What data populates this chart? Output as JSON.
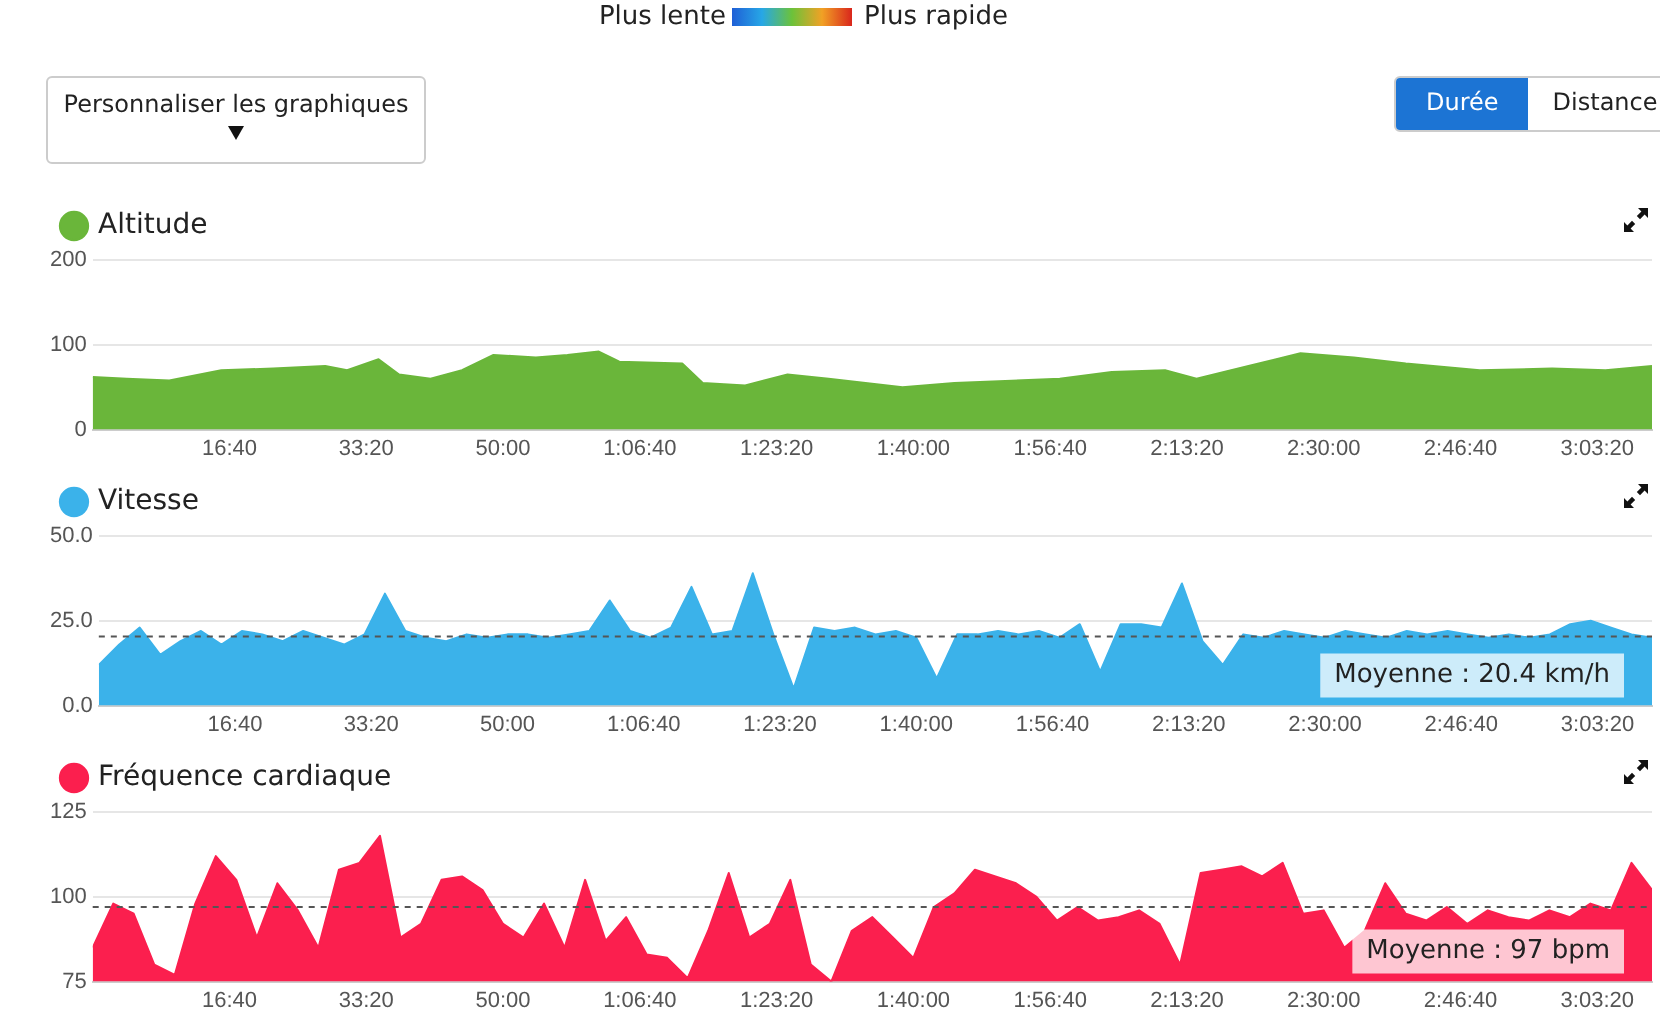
{
  "chart_data": [
    {
      "type": "area",
      "legend": "top left",
      "grid": "y",
      "marker": "none",
      "annotations": [
        "Plus lente",
        "Plus rapide",
        "Personnaliser les graphiques",
        "Durée",
        "Distance"
      ],
      "xlim": [
        0,
        11400
      ],
      "xticks": [
        {
          "value": 1000,
          "label": "16:40"
        },
        {
          "value": 2000,
          "label": "33:20"
        },
        {
          "value": 3000,
          "label": "50:00"
        },
        {
          "value": 4000,
          "label": "1:06:40"
        },
        {
          "value": 5000,
          "label": "1:23:20"
        },
        {
          "value": 6000,
          "label": "1:40:00"
        },
        {
          "value": 7000,
          "label": "1:56:40"
        },
        {
          "value": 8000,
          "label": "2:13:20"
        },
        {
          "value": 9000,
          "label": "2:30:00"
        },
        {
          "value": 10000,
          "label": "2:46:40"
        },
        {
          "value": 11000,
          "label": "3:03:20"
        }
      ],
      "ylim": [
        0,
        200
      ],
      "yticks": [
        0,
        100,
        200
      ],
      "series": [
        {
          "name": "Altitude",
          "color": "#6ab63a",
          "x": [
            0,
            250,
            560,
            940,
            1320,
            1700,
            1860,
            2090,
            2240,
            2470,
            2700,
            2930,
            3240,
            3470,
            3700,
            3850,
            4310,
            4460,
            4770,
            5080,
            5380,
            5920,
            6300,
            7070,
            7450,
            7840,
            8070,
            8450,
            8830,
            9220,
            9600,
            10140,
            10670,
            11060,
            11400
          ],
          "values": [
            62,
            60,
            58,
            70,
            72,
            75,
            70,
            83,
            65,
            60,
            70,
            88,
            85,
            88,
            92,
            80,
            78,
            55,
            52,
            65,
            60,
            50,
            55,
            60,
            68,
            70,
            60,
            75,
            90,
            85,
            78,
            70,
            72,
            70,
            75
          ]
        }
      ]
    },
    {
      "type": "area",
      "legend": "top left",
      "grid": "y",
      "marker": "none",
      "xlim": [
        0,
        11400
      ],
      "xticks": [
        {
          "value": 1000,
          "label": "16:40"
        },
        {
          "value": 2000,
          "label": "33:20"
        },
        {
          "value": 3000,
          "label": "50:00"
        },
        {
          "value": 4000,
          "label": "1:06:40"
        },
        {
          "value": 5000,
          "label": "1:23:20"
        },
        {
          "value": 6000,
          "label": "1:40:00"
        },
        {
          "value": 7000,
          "label": "1:56:40"
        },
        {
          "value": 8000,
          "label": "2:13:20"
        },
        {
          "value": 9000,
          "label": "2:30:00"
        },
        {
          "value": 10000,
          "label": "2:46:40"
        },
        {
          "value": 11000,
          "label": "3:03:20"
        }
      ],
      "ylim": [
        0,
        50
      ],
      "yticks": [
        {
          "value": 0,
          "label": "0.0"
        },
        {
          "value": 25,
          "label": "25.0"
        },
        {
          "value": 50,
          "label": "50.0"
        }
      ],
      "ref_lines": [
        {
          "axis": "y",
          "value": 20.4,
          "label": "Moyenne : 20.4 km/h",
          "line_style": "dashed"
        }
      ],
      "x": [
        0,
        150,
        300,
        450,
        600,
        750,
        900,
        1050,
        1200,
        1350,
        1500,
        1650,
        1800,
        1950,
        2100,
        2250,
        2400,
        2550,
        2700,
        2850,
        3000,
        3150,
        3300,
        3450,
        3600,
        3750,
        3900,
        4050,
        4200,
        4350,
        4500,
        4650,
        4800,
        4950,
        5100,
        5250,
        5400,
        5550,
        5700,
        5850,
        6000,
        6150,
        6300,
        6450,
        6600,
        6750,
        6900,
        7050,
        7200,
        7350,
        7500,
        7650,
        7800,
        7950,
        8100,
        8250,
        8400,
        8550,
        8700,
        8850,
        9000,
        9150,
        9300,
        9450,
        9600,
        9750,
        9900,
        10050,
        10200,
        10350,
        10500,
        10650,
        10800,
        10950,
        11100,
        11250,
        11400
      ],
      "series": [
        {
          "name": "Vitesse",
          "color": "#3bb2ea",
          "values": [
            12,
            18,
            23,
            15,
            19,
            22,
            18,
            22,
            21,
            19,
            22,
            20,
            18,
            21,
            33,
            22,
            20,
            19,
            21,
            20,
            21,
            21,
            20,
            21,
            22,
            31,
            22,
            20,
            23,
            35,
            21,
            22,
            39,
            21,
            5,
            23,
            22,
            23,
            21,
            22,
            20,
            8,
            21,
            21,
            22,
            21,
            22,
            20,
            24,
            10,
            24,
            24,
            23,
            36,
            19,
            12,
            21,
            20,
            22,
            21,
            20,
            22,
            21,
            20,
            22,
            21,
            22,
            21,
            20,
            21,
            20,
            21,
            24,
            25,
            23,
            21,
            20
          ]
        }
      ]
    },
    {
      "type": "area",
      "legend": "top left",
      "grid": "y",
      "marker": "none",
      "xlim": [
        0,
        11400
      ],
      "xticks": [
        {
          "value": 1000,
          "label": "16:40"
        },
        {
          "value": 2000,
          "label": "33:20"
        },
        {
          "value": 3000,
          "label": "50:00"
        },
        {
          "value": 4000,
          "label": "1:06:40"
        },
        {
          "value": 5000,
          "label": "1:23:20"
        },
        {
          "value": 6000,
          "label": "1:40:00"
        },
        {
          "value": 7000,
          "label": "1:56:40"
        },
        {
          "value": 8000,
          "label": "2:13:20"
        },
        {
          "value": 9000,
          "label": "2:30:00"
        },
        {
          "value": 10000,
          "label": "2:46:40"
        },
        {
          "value": 11000,
          "label": "3:03:20"
        }
      ],
      "ylim": [
        75,
        125
      ],
      "yticks": [
        75,
        100,
        125
      ],
      "ref_lines": [
        {
          "axis": "y",
          "value": 97,
          "label": "Moyenne : 97 bpm",
          "line_style": "dashed"
        }
      ],
      "x": [
        0,
        150,
        300,
        450,
        600,
        750,
        900,
        1050,
        1200,
        1350,
        1500,
        1650,
        1800,
        1950,
        2100,
        2250,
        2400,
        2550,
        2700,
        2850,
        3000,
        3150,
        3300,
        3450,
        3600,
        3750,
        3900,
        4050,
        4200,
        4350,
        4500,
        4650,
        4800,
        4950,
        5100,
        5250,
        5400,
        5550,
        5700,
        5850,
        6000,
        6150,
        6300,
        6450,
        6600,
        6750,
        6900,
        7050,
        7200,
        7350,
        7500,
        7650,
        7800,
        7950,
        8100,
        8250,
        8400,
        8550,
        8700,
        8850,
        9000,
        9150,
        9300,
        9450,
        9600,
        9750,
        9900,
        10050,
        10200,
        10350,
        10500,
        10650,
        10800,
        10950,
        11100,
        11250,
        11400
      ],
      "series": [
        {
          "name": "Fréquence cardiaque",
          "color": "#fb1f4e",
          "values": [
            85,
            98,
            95,
            80,
            77,
            98,
            112,
            105,
            88,
            104,
            96,
            85,
            108,
            110,
            118,
            88,
            92,
            105,
            106,
            102,
            92,
            88,
            98,
            85,
            105,
            87,
            94,
            83,
            82,
            76,
            90,
            107,
            88,
            92,
            105,
            80,
            75,
            90,
            94,
            88,
            82,
            97,
            101,
            108,
            106,
            104,
            100,
            93,
            97,
            93,
            94,
            96,
            92,
            80,
            107,
            108,
            109,
            106,
            110,
            95,
            96,
            85,
            90,
            104,
            95,
            93,
            97,
            92,
            96,
            94,
            93,
            96,
            94,
            98,
            96,
            110,
            102
          ]
        }
      ]
    }
  ]
}
